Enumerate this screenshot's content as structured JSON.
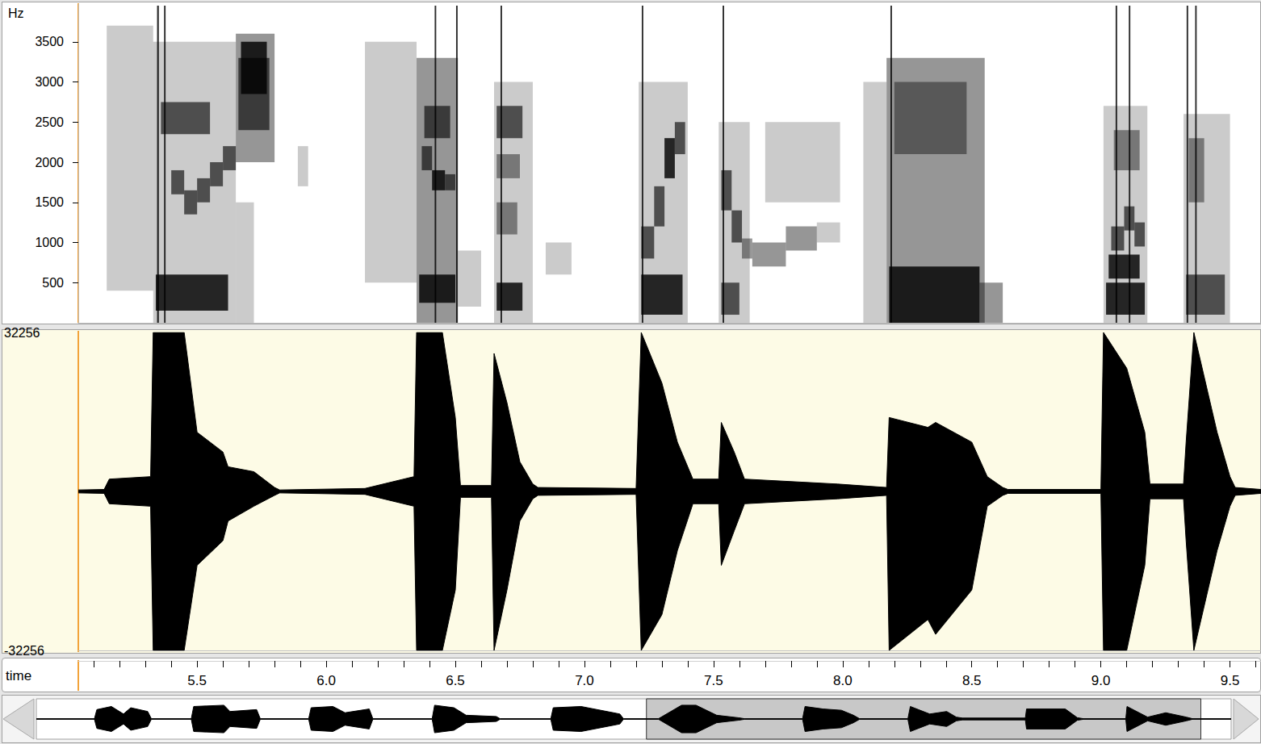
{
  "chart_data": [
    {
      "type": "spectrogram",
      "ylabel": "Hz",
      "color": "#000000",
      "xlim": [
        5.04,
        9.62
      ],
      "ylim": [
        0,
        3970
      ],
      "yticks": [
        500,
        1000,
        1500,
        2000,
        2500,
        3000,
        3500
      ],
      "tick_labels": "y",
      "cells": [
        [
          5.15,
          5.33,
          400,
          3700,
          1
        ],
        [
          5.33,
          5.65,
          0,
          3500,
          1
        ],
        [
          5.34,
          5.62,
          150,
          600,
          4
        ],
        [
          5.36,
          5.55,
          2350,
          2750,
          3
        ],
        [
          5.4,
          5.45,
          1600,
          1900,
          3
        ],
        [
          5.45,
          5.5,
          1350,
          1650,
          3
        ],
        [
          5.5,
          5.55,
          1500,
          1800,
          3
        ],
        [
          5.55,
          5.6,
          1700,
          2000,
          3
        ],
        [
          5.6,
          5.65,
          1900,
          2200,
          3
        ],
        [
          5.345,
          5.352,
          0,
          3950,
          4
        ],
        [
          5.372,
          5.378,
          0,
          3950,
          4
        ],
        [
          5.65,
          5.72,
          0,
          1500,
          1
        ],
        [
          5.65,
          5.8,
          2000,
          3600,
          2
        ],
        [
          5.66,
          5.78,
          2400,
          3300,
          3
        ],
        [
          5.67,
          5.77,
          2850,
          3500,
          4
        ],
        [
          5.89,
          5.93,
          1700,
          2200,
          1
        ],
        [
          6.15,
          6.35,
          500,
          3500,
          1
        ],
        [
          6.35,
          6.51,
          0,
          3300,
          2
        ],
        [
          6.36,
          6.5,
          250,
          600,
          4
        ],
        [
          6.38,
          6.48,
          2300,
          2700,
          3
        ],
        [
          6.37,
          6.41,
          1900,
          2200,
          3
        ],
        [
          6.41,
          6.46,
          1650,
          1900,
          4
        ],
        [
          6.46,
          6.5,
          1650,
          1850,
          3
        ],
        [
          6.42,
          6.426,
          0,
          3950,
          4
        ],
        [
          6.503,
          6.509,
          0,
          3950,
          4
        ],
        [
          6.51,
          6.6,
          200,
          900,
          1
        ],
        [
          6.65,
          6.8,
          0,
          3000,
          1
        ],
        [
          6.66,
          6.76,
          150,
          500,
          4
        ],
        [
          6.66,
          6.76,
          2300,
          2700,
          3
        ],
        [
          6.66,
          6.74,
          1100,
          1500,
          2
        ],
        [
          6.66,
          6.75,
          1800,
          2100,
          2
        ],
        [
          6.675,
          6.681,
          0,
          3950,
          4
        ],
        [
          6.85,
          6.95,
          600,
          1000,
          1
        ],
        [
          7.21,
          7.4,
          0,
          3000,
          1
        ],
        [
          7.22,
          7.38,
          100,
          600,
          4
        ],
        [
          7.22,
          7.27,
          800,
          1200,
          3
        ],
        [
          7.27,
          7.31,
          1200,
          1700,
          3
        ],
        [
          7.31,
          7.35,
          1800,
          2300,
          4
        ],
        [
          7.35,
          7.39,
          2100,
          2500,
          3
        ],
        [
          7.222,
          7.228,
          0,
          3950,
          4
        ],
        [
          7.52,
          7.64,
          0,
          2500,
          1
        ],
        [
          7.53,
          7.6,
          100,
          500,
          3
        ],
        [
          7.53,
          7.57,
          1400,
          1900,
          3
        ],
        [
          7.57,
          7.61,
          1000,
          1400,
          3
        ],
        [
          7.61,
          7.65,
          800,
          1050,
          2
        ],
        [
          7.535,
          7.541,
          0,
          3950,
          4
        ],
        [
          7.65,
          7.78,
          700,
          1000,
          2
        ],
        [
          7.78,
          7.9,
          900,
          1200,
          2
        ],
        [
          7.9,
          7.99,
          1000,
          1250,
          1
        ],
        [
          7.7,
          7.99,
          1500,
          2500,
          1
        ],
        [
          8.08,
          8.17,
          0,
          3000,
          1
        ],
        [
          8.17,
          8.55,
          0,
          3300,
          2
        ],
        [
          8.18,
          8.53,
          0,
          700,
          4
        ],
        [
          8.2,
          8.48,
          2100,
          3000,
          2
        ],
        [
          8.53,
          8.62,
          0,
          500,
          2
        ],
        [
          8.185,
          8.191,
          0,
          3950,
          4
        ],
        [
          9.01,
          9.18,
          0,
          2700,
          1
        ],
        [
          9.02,
          9.17,
          100,
          500,
          4
        ],
        [
          9.03,
          9.15,
          550,
          850,
          4
        ],
        [
          9.04,
          9.09,
          900,
          1200,
          3
        ],
        [
          9.09,
          9.13,
          1150,
          1450,
          3
        ],
        [
          9.13,
          9.17,
          950,
          1250,
          3
        ],
        [
          9.05,
          9.15,
          1900,
          2400,
          2
        ],
        [
          9.057,
          9.063,
          0,
          3950,
          4
        ],
        [
          9.108,
          9.114,
          0,
          3950,
          4
        ],
        [
          9.32,
          9.5,
          0,
          2600,
          1
        ],
        [
          9.33,
          9.48,
          100,
          600,
          3
        ],
        [
          9.34,
          9.4,
          1500,
          2300,
          2
        ],
        [
          9.332,
          9.338,
          0,
          3950,
          4
        ],
        [
          9.365,
          9.371,
          0,
          3950,
          4
        ]
      ]
    },
    {
      "type": "waveform",
      "color": "#000000",
      "xlim": [
        5.04,
        9.62
      ],
      "ylim": [
        -32256,
        32256
      ],
      "yticks": [
        -32256,
        32256
      ],
      "tick_labels": "y",
      "x": [
        5.04,
        5.14,
        5.16,
        5.32,
        5.33,
        5.45,
        5.5,
        5.6,
        5.62,
        5.72,
        5.8,
        5.82,
        6.15,
        6.3,
        6.34,
        6.35,
        6.45,
        6.5,
        6.52,
        6.64,
        6.65,
        6.7,
        6.75,
        6.8,
        6.82,
        7.2,
        7.22,
        7.3,
        7.36,
        7.42,
        7.52,
        7.53,
        7.58,
        7.62,
        7.98,
        8.17,
        8.18,
        8.33,
        8.36,
        8.5,
        8.56,
        8.62,
        8.64,
        9.0,
        9.01,
        9.1,
        9.17,
        9.19,
        9.32,
        9.33,
        9.36,
        9.45,
        9.5,
        9.52,
        9.62
      ],
      "series": [
        {
          "values": [
            300,
            400,
            2500,
            3000,
            32256,
            32256,
            12000,
            8000,
            5000,
            4000,
            800,
            300,
            600,
            2500,
            3000,
            32256,
            32256,
            15000,
            1200,
            1200,
            28000,
            18000,
            6000,
            1500,
            800,
            600,
            32256,
            22000,
            10000,
            2500,
            2500,
            14000,
            8000,
            2500,
            1500,
            800,
            15000,
            13000,
            14000,
            10000,
            3000,
            800,
            400,
            400,
            32256,
            25000,
            12000,
            1500,
            1500,
            10000,
            32256,
            12000,
            3000,
            800,
            400
          ]
        },
        {
          "values": [
            -300,
            -400,
            -2500,
            -3000,
            -32256,
            -32256,
            -15000,
            -10000,
            -6000,
            -3000,
            -800,
            -300,
            -600,
            -2500,
            -3000,
            -32256,
            -32256,
            -20000,
            -1200,
            -1200,
            -32256,
            -20000,
            -6000,
            -1500,
            -800,
            -600,
            -32256,
            -25000,
            -12000,
            -2500,
            -2500,
            -15000,
            -8000,
            -2500,
            -1500,
            -800,
            -32256,
            -26000,
            -29000,
            -20000,
            -3000,
            -800,
            -400,
            -400,
            -32256,
            -32256,
            -15000,
            -1500,
            -1500,
            -10000,
            -32256,
            -12000,
            -3000,
            -800,
            -400
          ]
        }
      ]
    },
    {
      "type": "time_axis",
      "xlabel": "time",
      "xlim": [
        5.04,
        9.62
      ],
      "xticks": [
        5.5,
        {
          "value": 6.0,
          "label": "6.0"
        },
        6.5,
        {
          "value": 7.0,
          "label": "7.0"
        },
        7.5,
        {
          "value": 8.0,
          "label": "8.0"
        },
        8.5,
        {
          "value": 9.0,
          "label": "9.0"
        },
        9.5
      ],
      "xminor_ticks": [
        5.1,
        5.2,
        5.3,
        5.4,
        5.5,
        5.6,
        5.7,
        5.8,
        5.9,
        6.0,
        6.1,
        6.2,
        6.3,
        6.4,
        6.5,
        6.6,
        6.7,
        6.8,
        6.9,
        7.0,
        7.1,
        7.2,
        7.3,
        7.4,
        7.5,
        7.6,
        7.7,
        7.8,
        7.9,
        8.0,
        8.1,
        8.2,
        8.3,
        8.4,
        8.5,
        8.6,
        8.7,
        8.8,
        8.9,
        9.0,
        9.1,
        9.2,
        9.3,
        9.4,
        9.5,
        9.6
      ]
    },
    {
      "type": "overview",
      "color": "#000000",
      "tick_labels": false,
      "xlim": [
        0,
        9.87
      ],
      "ylim": [
        -32256,
        32256
      ],
      "selection": [
        5.04,
        9.62
      ],
      "x": [
        0,
        0.48,
        0.5,
        0.62,
        0.72,
        0.78,
        0.92,
        0.95,
        1.28,
        1.3,
        1.55,
        1.6,
        1.82,
        1.85,
        2.25,
        2.27,
        2.45,
        2.55,
        2.75,
        2.78,
        3.27,
        3.29,
        3.45,
        3.55,
        3.8,
        3.83,
        4.25,
        4.27,
        4.5,
        4.82,
        4.85,
        5.14,
        5.33,
        5.45,
        5.62,
        5.8,
        5.85,
        6.33,
        6.35,
        6.5,
        6.65,
        6.75,
        6.8,
        7.2,
        7.22,
        7.38,
        7.52,
        7.6,
        7.65,
        8.17,
        8.18,
        8.5,
        8.6,
        8.65,
        9.0,
        9.01,
        9.18,
        9.33,
        9.5,
        9.55,
        9.87
      ],
      "series": [
        {
          "values": [
            500,
            500,
            15000,
            20000,
            8000,
            18000,
            12000,
            500,
            500,
            20000,
            22000,
            12000,
            15000,
            500,
            500,
            18000,
            20000,
            10000,
            16000,
            500,
            500,
            22000,
            18000,
            6000,
            4000,
            500,
            500,
            18000,
            20000,
            8000,
            500,
            500,
            22000,
            22000,
            6000,
            2000,
            500,
            500,
            20000,
            16000,
            14000,
            6000,
            500,
            500,
            20000,
            8000,
            12000,
            3000,
            1500,
            1500,
            16000,
            16000,
            2000,
            500,
            500,
            20000,
            3000,
            10000,
            3000,
            500,
            500
          ]
        },
        {
          "values": [
            -500,
            -500,
            -15000,
            -20000,
            -8000,
            -18000,
            -12000,
            -500,
            -500,
            -20000,
            -22000,
            -12000,
            -15000,
            -500,
            -500,
            -18000,
            -20000,
            -10000,
            -16000,
            -500,
            -500,
            -22000,
            -18000,
            -6000,
            -4000,
            -500,
            -500,
            -18000,
            -20000,
            -8000,
            -500,
            -500,
            -22000,
            -22000,
            -6000,
            -2000,
            -500,
            -500,
            -20000,
            -16000,
            -14000,
            -6000,
            -500,
            -500,
            -20000,
            -8000,
            -12000,
            -3000,
            -1500,
            -1500,
            -16000,
            -16000,
            -2000,
            -500,
            -500,
            -20000,
            -3000,
            -10000,
            -3000,
            -500,
            -500
          ]
        }
      ]
    }
  ]
}
